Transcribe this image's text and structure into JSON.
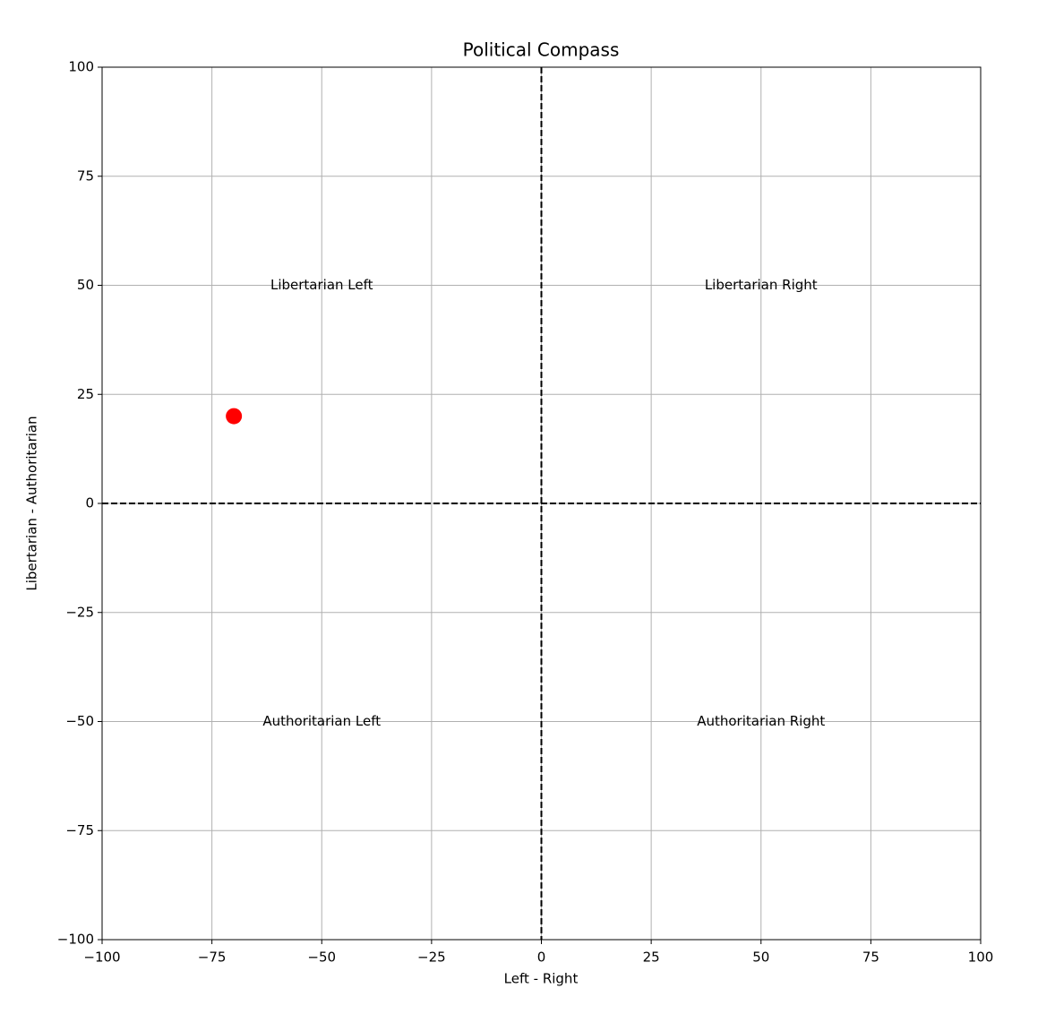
{
  "chart_data": {
    "type": "scatter",
    "title": "Political Compass",
    "xlabel": "Left - Right",
    "ylabel": "Libertarian - Authoritarian",
    "series": [
      {
        "name": null,
        "color": "red",
        "x": [
          -70
        ],
        "values": [
          20
        ]
      }
    ],
    "xlim": [
      -100,
      100
    ],
    "ylim": [
      -100,
      100
    ],
    "xticks": [
      {
        "value": -100,
        "label": "−100"
      },
      {
        "value": -75,
        "label": "−75"
      },
      {
        "value": -50,
        "label": "−50"
      },
      {
        "value": -25,
        "label": "−25"
      },
      0,
      25,
      50,
      75,
      100
    ],
    "yticks": [
      {
        "value": -100,
        "label": "−100"
      },
      {
        "value": -75,
        "label": "−75"
      },
      {
        "value": -50,
        "label": "−50"
      },
      {
        "value": -25,
        "label": "−25"
      },
      0,
      25,
      50,
      75,
      100
    ],
    "grid": true,
    "hlines": [
      0
    ],
    "vlines": [
      0
    ],
    "annotations": [
      {
        "text": "Libertarian Left",
        "x": -50,
        "y": 50
      },
      {
        "text": "Libertarian Right",
        "x": 50,
        "y": 50
      },
      {
        "text": "Authoritarian Left",
        "x": -50,
        "y": -50
      },
      {
        "text": "Authoritarian Right",
        "x": 50,
        "y": -50
      }
    ]
  }
}
